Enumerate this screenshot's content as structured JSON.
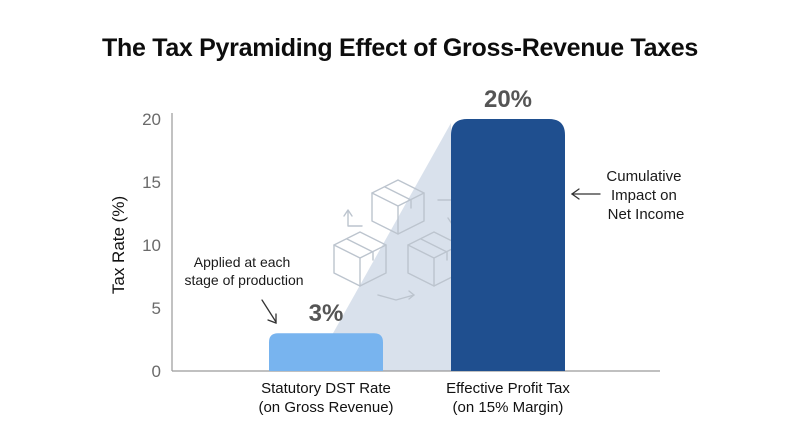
{
  "title": "The Tax Pyramiding Effect of Gross-Revenue Taxes",
  "chart_data": {
    "type": "bar",
    "title": "The Tax Pyramiding Effect of Gross-Revenue Taxes",
    "ylabel": "Tax Rate (%)",
    "xlabel": "",
    "ylim": [
      0,
      20
    ],
    "yticks": [
      "0",
      "5",
      "10",
      "15",
      "20"
    ],
    "categories": [
      [
        "Statutory DST Rate",
        "(on Gross Revenue)"
      ],
      [
        "Effective Profit Tax",
        "(on 15% Margin)"
      ]
    ],
    "values": [
      3,
      20
    ],
    "value_labels": [
      "3%",
      "20%"
    ],
    "colors": [
      "#78b4ef",
      "#1f4f8f"
    ],
    "grid": false
  },
  "annotations": {
    "left": [
      "Applied at each",
      "stage of production"
    ],
    "right": [
      "Cumulative",
      "Impact on",
      "Net Income"
    ]
  },
  "icons": [
    "boxes-cycle-icon"
  ]
}
